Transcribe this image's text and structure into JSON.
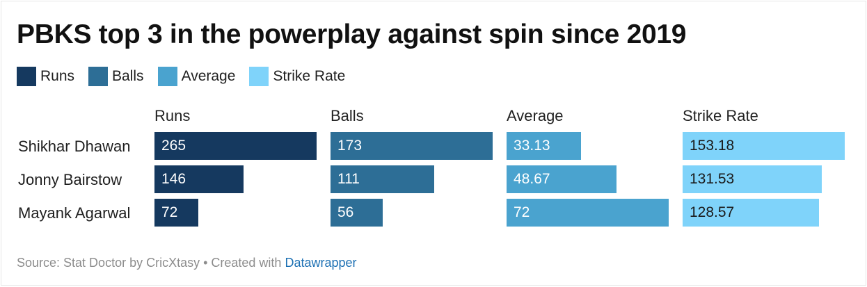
{
  "title": "PBKS top 3 in the powerplay against spin since 2019",
  "colors": {
    "runs": "#15395f",
    "balls": "#2d6e96",
    "average": "#4aa3cf",
    "strike_rate": "#7fd3fa"
  },
  "legend": [
    {
      "label": "Runs",
      "color": "#15395f"
    },
    {
      "label": "Balls",
      "color": "#2d6e96"
    },
    {
      "label": "Average",
      "color": "#4aa3cf"
    },
    {
      "label": "Strike Rate",
      "color": "#7fd3fa"
    }
  ],
  "chart_data": {
    "type": "bar",
    "title": "PBKS top 3 in the powerplay against spin since 2019",
    "categories": [
      "Shikhar Dhawan",
      "Jonny Bairstow",
      "Mayank Agarwal"
    ],
    "series": [
      {
        "name": "Runs",
        "key": "runs",
        "values": [
          265,
          146,
          72
        ],
        "labels": [
          "265",
          "146",
          "72"
        ],
        "max": 265
      },
      {
        "name": "Balls",
        "key": "balls",
        "values": [
          173,
          111,
          56
        ],
        "labels": [
          "173",
          "111",
          "56"
        ],
        "max": 173
      },
      {
        "name": "Average",
        "key": "average",
        "values": [
          33.13,
          48.67,
          72
        ],
        "labels": [
          "33.13",
          "48.67",
          "72"
        ],
        "max": 72
      },
      {
        "name": "Strike Rate",
        "key": "strike_rate",
        "values": [
          153.18,
          131.53,
          128.57
        ],
        "labels": [
          "153.18",
          "131.53",
          "128.57"
        ],
        "max": 153.18
      }
    ]
  },
  "footer": {
    "source_text": "Source: Stat Doctor by CricXtasy • Created with ",
    "link_text": "Datawrapper"
  }
}
